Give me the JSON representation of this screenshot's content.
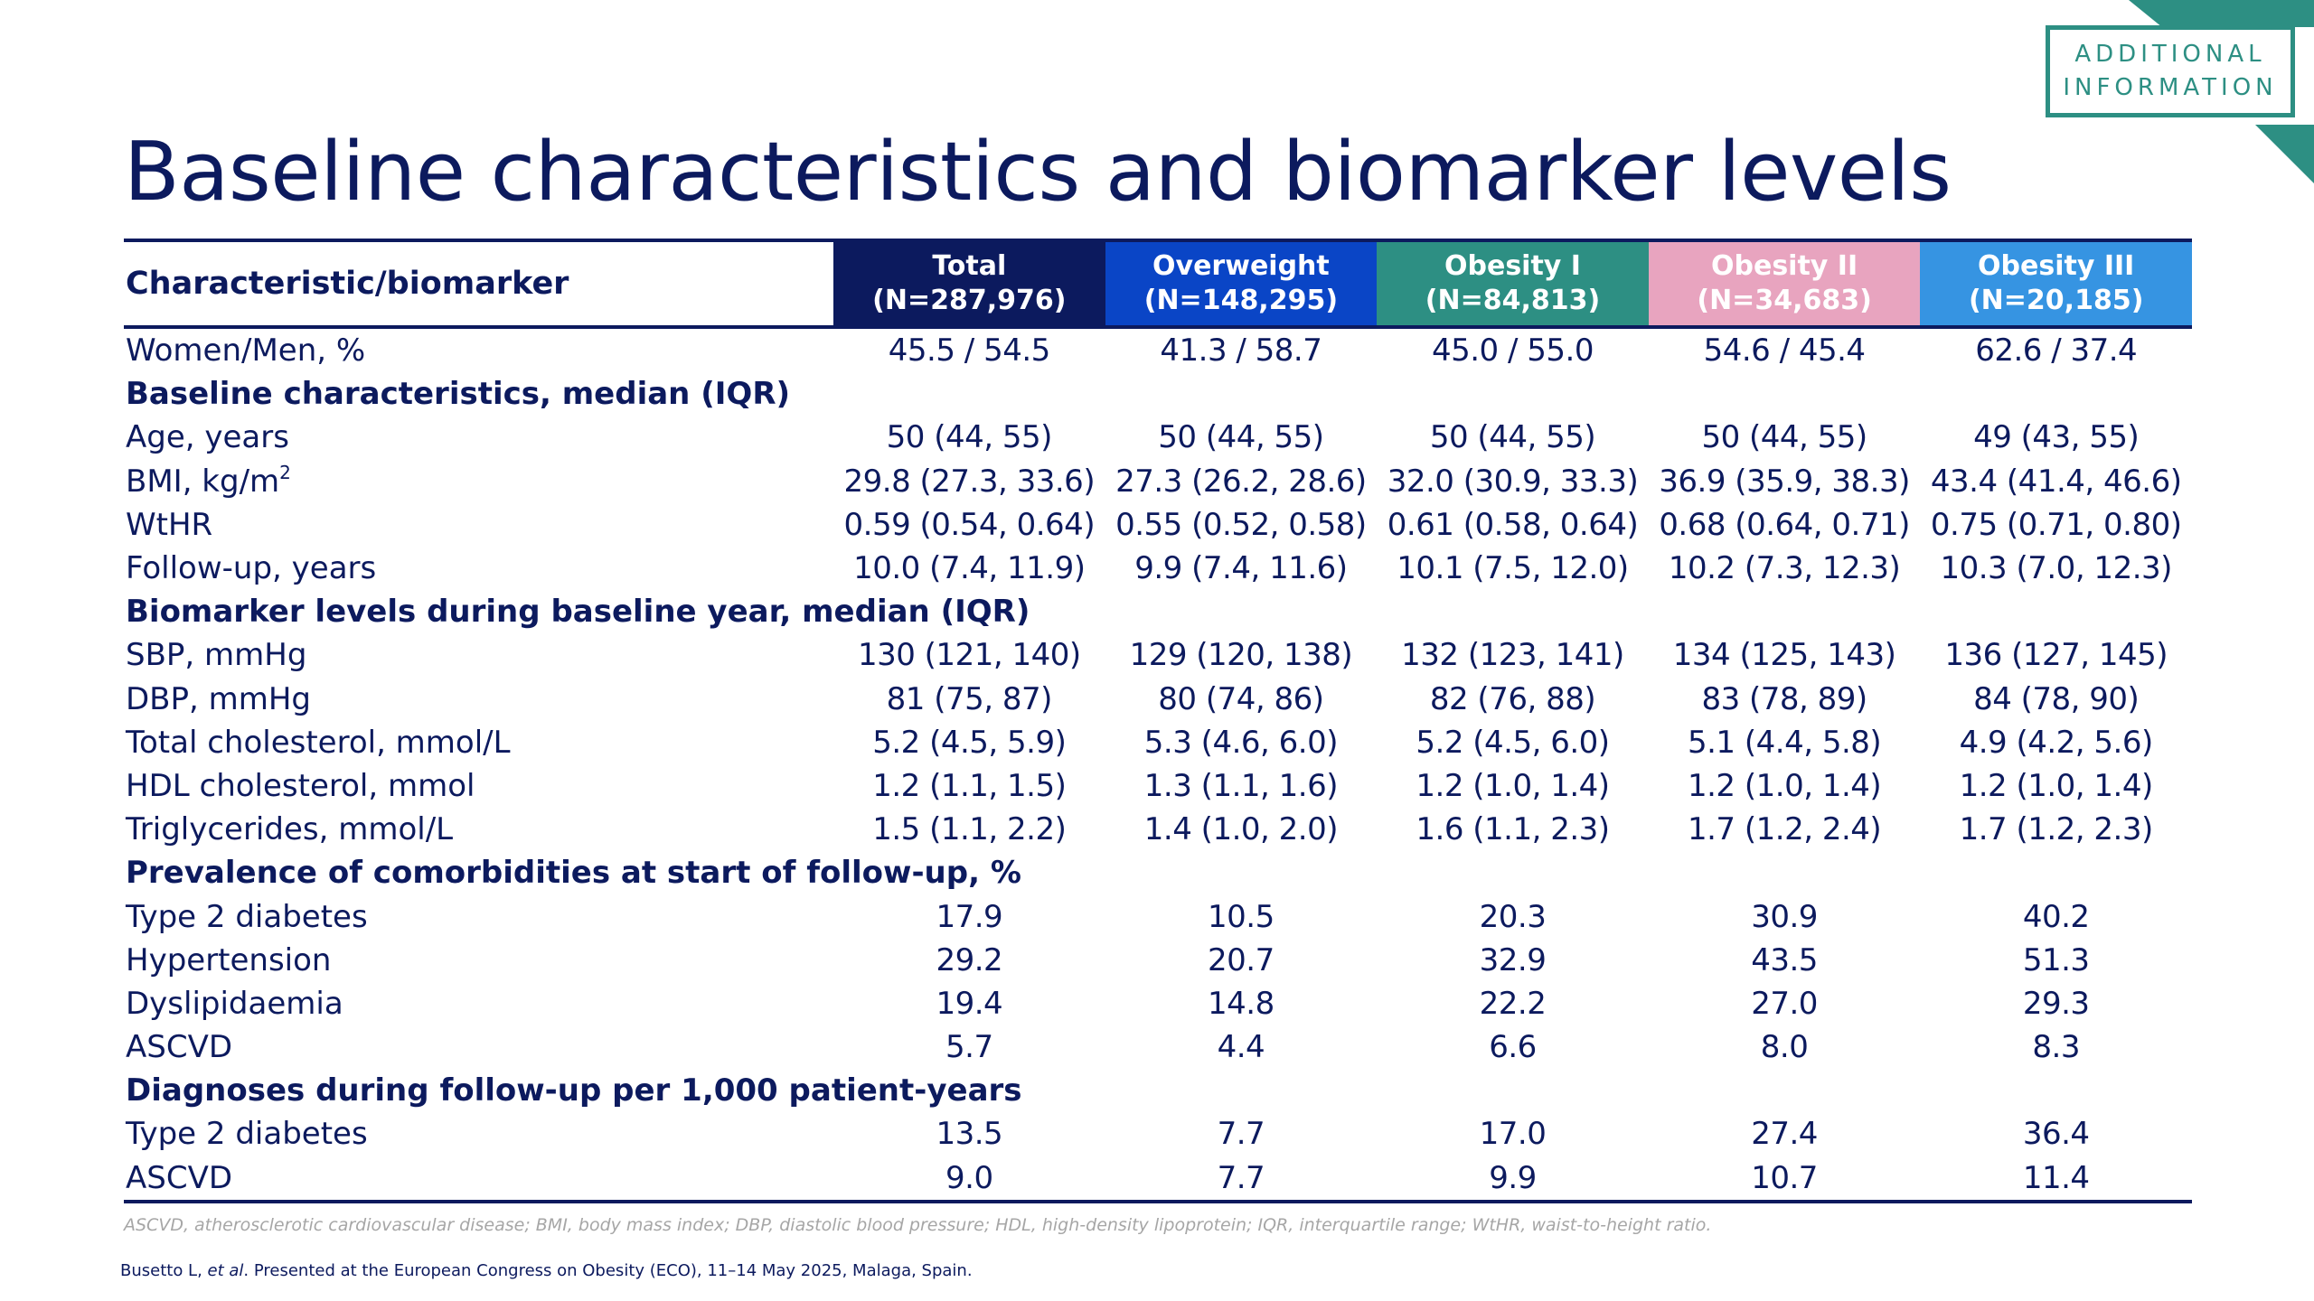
{
  "badge": {
    "line1": "ADDITIONAL",
    "line2": "INFORMATION"
  },
  "title": "Baseline characteristics and biomarker levels",
  "table": {
    "header": {
      "label": "Characteristic/biomarker",
      "columns": [
        {
          "name": "Total",
          "n": "(N=287,976)",
          "color": "#0c1a5e"
        },
        {
          "name": "Overweight",
          "n": "(N=148,295)",
          "color": "#0a45c6"
        },
        {
          "name": "Obesity I",
          "n": "(N=84,813)",
          "color": "#2d8f83"
        },
        {
          "name": "Obesity II",
          "n": "(N=34,683)",
          "color": "#e8a4bf"
        },
        {
          "name": "Obesity III",
          "n": "(N=20,185)",
          "color": "#3694e2"
        }
      ]
    },
    "rows": [
      {
        "type": "data",
        "label": "Women/Men, %",
        "values": [
          "45.5 / 54.5",
          "41.3 / 58.7",
          "45.0 / 55.0",
          "54.6 / 45.4",
          "62.6 / 37.4"
        ]
      },
      {
        "type": "section",
        "label": "Baseline characteristics, median (IQR)"
      },
      {
        "type": "data",
        "label": "Age, years",
        "values": [
          "50 (44, 55)",
          "50 (44, 55)",
          "50 (44, 55)",
          "50 (44, 55)",
          "49 (43, 55)"
        ]
      },
      {
        "type": "data",
        "label": "BMI, kg/m",
        "sup": "2",
        "values": [
          "29.8 (27.3, 33.6)",
          "27.3 (26.2, 28.6)",
          "32.0 (30.9, 33.3)",
          "36.9 (35.9, 38.3)",
          "43.4 (41.4, 46.6)"
        ]
      },
      {
        "type": "data",
        "label": "WtHR",
        "values": [
          "0.59 (0.54, 0.64)",
          "0.55 (0.52, 0.58)",
          "0.61 (0.58, 0.64)",
          "0.68 (0.64, 0.71)",
          "0.75 (0.71, 0.80)"
        ]
      },
      {
        "type": "data",
        "label": "Follow-up, years",
        "values": [
          "10.0 (7.4, 11.9)",
          "9.9 (7.4, 11.6)",
          "10.1 (7.5, 12.0)",
          "10.2 (7.3, 12.3)",
          "10.3 (7.0, 12.3)"
        ]
      },
      {
        "type": "section",
        "label": "Biomarker levels during baseline year, median (IQR)"
      },
      {
        "type": "data",
        "label": "SBP, mmHg",
        "values": [
          "130 (121, 140)",
          "129 (120, 138)",
          "132 (123, 141)",
          "134 (125, 143)",
          "136 (127, 145)"
        ]
      },
      {
        "type": "data",
        "label": "DBP, mmHg",
        "values": [
          "81 (75, 87)",
          "80 (74, 86)",
          "82 (76, 88)",
          "83 (78, 89)",
          "84 (78, 90)"
        ]
      },
      {
        "type": "data",
        "label": "Total cholesterol, mmol/L",
        "values": [
          "5.2 (4.5, 5.9)",
          "5.3 (4.6, 6.0)",
          "5.2 (4.5, 6.0)",
          "5.1 (4.4, 5.8)",
          "4.9 (4.2, 5.6)"
        ]
      },
      {
        "type": "data",
        "label": "HDL cholesterol, mmol",
        "values": [
          "1.2 (1.1, 1.5)",
          "1.3 (1.1, 1.6)",
          "1.2 (1.0, 1.4)",
          "1.2 (1.0, 1.4)",
          "1.2 (1.0, 1.4)"
        ]
      },
      {
        "type": "data",
        "label": "Triglycerides, mmol/L",
        "values": [
          "1.5 (1.1, 2.2)",
          "1.4 (1.0, 2.0)",
          "1.6 (1.1, 2.3)",
          "1.7 (1.2, 2.4)",
          "1.7 (1.2, 2.3)"
        ]
      },
      {
        "type": "section",
        "label": "Prevalence of comorbidities at start of follow-up, %"
      },
      {
        "type": "data",
        "label": "Type 2 diabetes",
        "values": [
          "17.9",
          "10.5",
          "20.3",
          "30.9",
          "40.2"
        ]
      },
      {
        "type": "data",
        "label": "Hypertension",
        "values": [
          "29.2",
          "20.7",
          "32.9",
          "43.5",
          "51.3"
        ]
      },
      {
        "type": "data",
        "label": "Dyslipidaemia",
        "values": [
          "19.4",
          "14.8",
          "22.2",
          "27.0",
          "29.3"
        ]
      },
      {
        "type": "data",
        "label": "ASCVD",
        "values": [
          "5.7",
          "4.4",
          "6.6",
          "8.0",
          "8.3"
        ]
      },
      {
        "type": "section",
        "label": "Diagnoses during follow-up per 1,000 patient-years"
      },
      {
        "type": "data",
        "label": "Type 2 diabetes",
        "values": [
          "13.5",
          "7.7",
          "17.0",
          "27.4",
          "36.4"
        ]
      },
      {
        "type": "data",
        "label": "ASCVD",
        "values": [
          "9.0",
          "7.7",
          "9.9",
          "10.7",
          "11.4"
        ]
      }
    ]
  },
  "footnote": "ASCVD, atherosclerotic cardiovascular disease; BMI, body mass index; DBP, diastolic blood pressure; HDL, high-density lipoprotein; IQR, interquartile range; WtHR, waist-to-height ratio.",
  "citation": {
    "before": "Busetto L, ",
    "etal": "et al",
    "after": ". Presented at the European Congress on Obesity (ECO), 11–14 May 2025, Malaga, Spain."
  },
  "colors": {
    "navy": "#0c1a5e",
    "teal": "#2d8f83",
    "footnote_gray": "#a6a6a6"
  }
}
